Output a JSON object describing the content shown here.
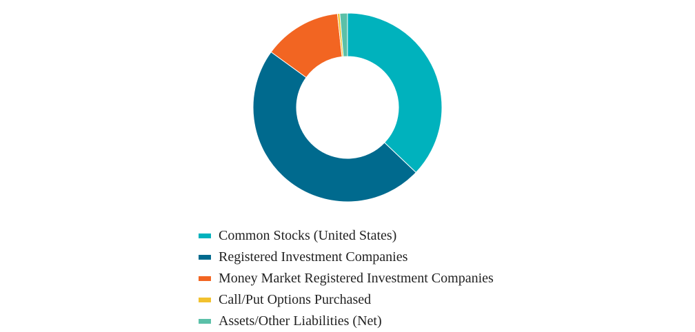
{
  "chart_data": {
    "type": "pie",
    "donut": true,
    "title": "",
    "legend_position": "bottom",
    "slices": [
      {
        "label": "Common Stocks (United States)",
        "value": 37.1,
        "color": "#00B2BD"
      },
      {
        "label": "Registered Investment Companies",
        "value": 47.9,
        "color": "#006A8E"
      },
      {
        "label": "Money Market Registered Investment Companies",
        "value": 13.3,
        "color": "#F26522"
      },
      {
        "label": "Call/Put Options Purchased",
        "value": 0.4,
        "color": "#F2C12E"
      },
      {
        "label": "Assets/Other Liabilities (Net)",
        "value": 1.3,
        "color": "#5BC0A8"
      }
    ]
  }
}
